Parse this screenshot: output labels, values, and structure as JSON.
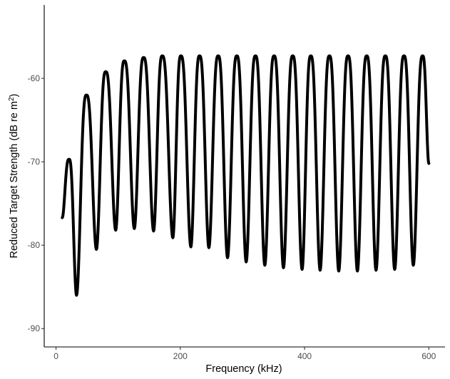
{
  "chart_data": {
    "type": "line",
    "xlabel": "Frequency (kHz)",
    "ylabel": "Reduced Target Strength (dB re m",
    "ylabel_sup": "2",
    "ylabel_end": ")",
    "xlim": [
      -19,
      626
    ],
    "ylim": [
      -92.2,
      -51.2
    ],
    "x_ticks": [
      0,
      200,
      400,
      600
    ],
    "y_ticks": [
      -90,
      -80,
      -70,
      -60
    ],
    "x_tick_labels": [
      "0",
      "200",
      "400",
      "600"
    ],
    "y_tick_labels": [
      "-90",
      "-80",
      "-70",
      "-60"
    ],
    "grid": false,
    "series": [
      {
        "color": "#000000",
        "x_range": [
          10,
          600
        ],
        "start_value": -76.7,
        "end_value": -70.2,
        "peaks": [
          {
            "x": 21,
            "value": -69.7
          },
          {
            "x": 49,
            "value": -62.0
          },
          {
            "x": 80,
            "value": -59.2
          },
          {
            "x": 110,
            "value": -57.9
          },
          {
            "x": 141,
            "value": -57.5
          },
          {
            "x": 171,
            "value": -57.3
          },
          {
            "x": 201,
            "value": -57.3
          },
          {
            "x": 231,
            "value": -57.3
          },
          {
            "x": 261,
            "value": -57.3
          },
          {
            "x": 291,
            "value": -57.3
          },
          {
            "x": 321,
            "value": -57.3
          },
          {
            "x": 351,
            "value": -57.3
          },
          {
            "x": 381,
            "value": -57.3
          },
          {
            "x": 410,
            "value": -57.3
          },
          {
            "x": 440,
            "value": -57.3
          },
          {
            "x": 470,
            "value": -57.3
          },
          {
            "x": 500,
            "value": -57.3
          },
          {
            "x": 530,
            "value": -57.3
          },
          {
            "x": 560,
            "value": -57.3
          },
          {
            "x": 590,
            "value": -57.3
          }
        ],
        "troughs": [
          {
            "x": 33,
            "value": -86.0
          },
          {
            "x": 65,
            "value": -80.5
          },
          {
            "x": 96,
            "value": -78.2
          },
          {
            "x": 126,
            "value": -78.0
          },
          {
            "x": 157,
            "value": -78.3
          },
          {
            "x": 188,
            "value": -79.1
          },
          {
            "x": 217,
            "value": -80.2
          },
          {
            "x": 246,
            "value": -80.3
          },
          {
            "x": 276,
            "value": -81.5
          },
          {
            "x": 306,
            "value": -82.0
          },
          {
            "x": 336,
            "value": -82.4
          },
          {
            "x": 366,
            "value": -82.7
          },
          {
            "x": 396,
            "value": -82.9
          },
          {
            "x": 425,
            "value": -83.0
          },
          {
            "x": 455,
            "value": -83.1
          },
          {
            "x": 485,
            "value": -83.1
          },
          {
            "x": 515,
            "value": -83.0
          },
          {
            "x": 545,
            "value": -82.9
          },
          {
            "x": 575,
            "value": -82.4
          }
        ]
      }
    ]
  }
}
